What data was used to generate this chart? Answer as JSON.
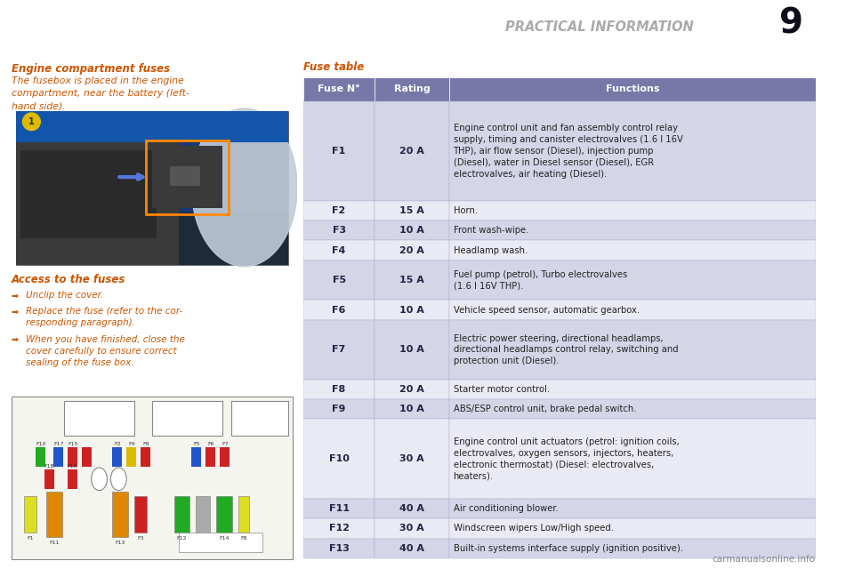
{
  "page_bg": "#ffffff",
  "header_bg": "#0d0d1a",
  "header_text": "PRACTICAL INFORMATION",
  "header_num": "9",
  "header_text_color": "#aaaaaa",
  "blue_line_color": "#3344aa",
  "left_title": "Engine compartment fuses",
  "left_title_color": "#cc5500",
  "left_body": "The fusebox is placed in the engine\ncompartment, near the battery (left-\nhand side).",
  "left_body_color": "#cc5500",
  "access_title": "Access to the fuses",
  "access_title_color": "#cc5500",
  "access_bullets": [
    "Unclip the cover.",
    "Replace the fuse (refer to the cor-\nresponding paragraph).",
    "When you have finished, close the\ncover carefully to ensure correct\nsealing of the fuse box."
  ],
  "access_color": "#cc5500",
  "fuse_table_title": "Fuse table",
  "fuse_table_title_color": "#cc5500",
  "table_header_bg": "#7878a8",
  "table_row_bg_even": "#d5d5e8",
  "table_row_bg_odd": "#eaeaf4",
  "table_border": "#aaaacc",
  "col_fuse": "Fuse N°",
  "col_rating": "Rating",
  "col_functions": "Functions",
  "fuses": [
    {
      "fuse": "F1",
      "rating": "20 A",
      "nlines": 5,
      "function": "Engine control unit and fan assembly control relay\nsupply, timing and canister electrovalves (1.6 l 16V\nTHP), air flow sensor (Diesel), injection pump\n(Diesel), water in Diesel sensor (Diesel), EGR\nelectrovalves, air heating (Diesel)."
    },
    {
      "fuse": "F2",
      "rating": "15 A",
      "nlines": 1,
      "function": "Horn."
    },
    {
      "fuse": "F3",
      "rating": "10 A",
      "nlines": 1,
      "function": "Front wash-wipe."
    },
    {
      "fuse": "F4",
      "rating": "20 A",
      "nlines": 1,
      "function": "Headlamp wash."
    },
    {
      "fuse": "F5",
      "rating": "15 A",
      "nlines": 2,
      "function": "Fuel pump (petrol), Turbo electrovalves\n(1.6 l 16V THP)."
    },
    {
      "fuse": "F6",
      "rating": "10 A",
      "nlines": 1,
      "function": "Vehicle speed sensor, automatic gearbox."
    },
    {
      "fuse": "F7",
      "rating": "10 A",
      "nlines": 3,
      "function": "Electric power steering, directional headlamps,\ndirectional headlamps control relay, switching and\nprotection unit (Diesel)."
    },
    {
      "fuse": "F8",
      "rating": "20 A",
      "nlines": 1,
      "function": "Starter motor control."
    },
    {
      "fuse": "F9",
      "rating": "10 A",
      "nlines": 1,
      "function": "ABS/ESP control unit, brake pedal switch."
    },
    {
      "fuse": "F10",
      "rating": "30 A",
      "nlines": 4,
      "function": "Engine control unit actuators (petrol: ignition coils,\nelectrovalves, oxygen sensors, injectors, heaters,\nelectronic thermostat) (Diesel: electrovalves,\nheaters)."
    },
    {
      "fuse": "F11",
      "rating": "40 A",
      "nlines": 1,
      "function": "Air conditioning blower."
    },
    {
      "fuse": "F12",
      "rating": "30 A",
      "nlines": 1,
      "function": "Windscreen wipers Low/High speed."
    },
    {
      "fuse": "F13",
      "rating": "40 A",
      "nlines": 1,
      "function": "Built-in systems interface supply (ignition positive)."
    }
  ],
  "side_tab_color": "#1a3399",
  "watermark": "carmanualsonline.info",
  "watermark_color": "#888888",
  "engine_img_bg": "#2a3a50",
  "fuse_diag_bg": "#f5f5f0"
}
